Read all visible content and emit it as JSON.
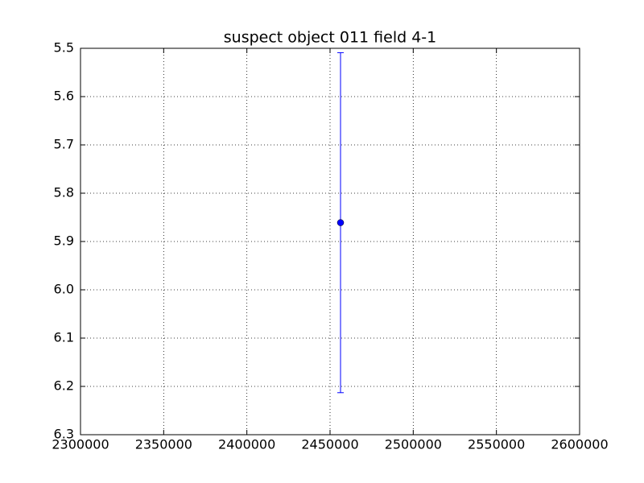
{
  "chart_data": {
    "type": "scatter",
    "title": "suspect object 011 field 4-1",
    "x": [
      2456300
    ],
    "values": [
      5.861
    ],
    "errors": [
      0.352
    ],
    "color": "#0000ff",
    "xlim": [
      2300000,
      2600000
    ],
    "xticks": [
      2300000,
      2350000,
      2400000,
      2450000,
      2500000,
      2550000,
      2600000
    ],
    "ylim": [
      6.3,
      5.5
    ],
    "yticks": [
      5.5,
      5.6,
      5.7,
      5.8,
      5.9,
      {
        "value": 6,
        "label": "6.0"
      },
      6.1,
      6.2,
      6.3
    ],
    "grid": true
  }
}
